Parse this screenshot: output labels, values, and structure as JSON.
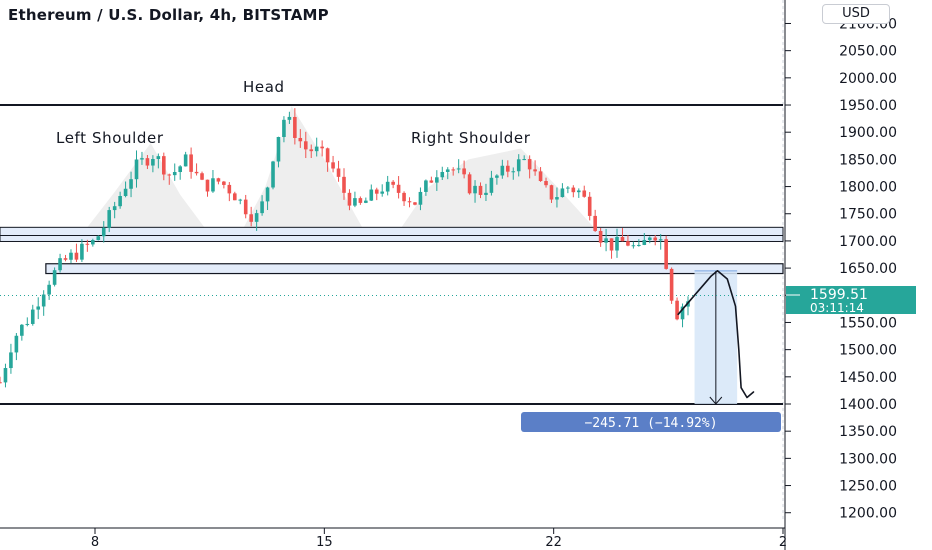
{
  "title": "Ethereum / U.S. Dollar, 4h, BITSTAMP",
  "currency": "USD",
  "colors": {
    "up": "#26a69a",
    "down": "#ef5350",
    "accent": "#26a69a",
    "measure_blue": "#5b7fc7",
    "zone_fill": "#e3ecfa",
    "pattern_fill": "#efefef"
  },
  "annotations": {
    "head": "Head",
    "left_shoulder": "Left Shoulder",
    "right_shoulder": "Right Shoulder"
  },
  "price_label": {
    "price": "1599.51",
    "countdown": "03:11:14"
  },
  "measure": {
    "label": "−245.71 (−14.92%)",
    "from": 1645,
    "to": 1400
  },
  "chart_data": {
    "type": "candlestick",
    "yticks": [
      1200,
      1250,
      1300,
      1350,
      1400,
      1450,
      1500,
      1550,
      1600,
      1650,
      1700,
      1750,
      1800,
      1850,
      1900,
      1950,
      2000,
      2050,
      2100
    ],
    "ytick_labels": [
      "1200.00",
      "1250.00",
      "1300.00",
      "1350.00",
      "1400.00",
      "1450.00",
      "1500.00",
      "1550.00",
      "1600.00",
      "1650.00",
      "1700.00",
      "1750.00",
      "1800.00",
      "1850.00",
      "1900.00",
      "1950.00",
      "2000.00",
      "2050.00",
      "2100.00"
    ],
    "xticks": [
      {
        "day": 8,
        "label": "8"
      },
      {
        "day": 15,
        "label": "15"
      },
      {
        "day": 22,
        "label": "22"
      },
      {
        "day": 29,
        "label": "2"
      }
    ],
    "ylim": [
      1170,
      2130
    ],
    "xlim": [
      5.1,
      29.0
    ],
    "levels": {
      "neckline_top": 1950,
      "target": 1400,
      "zone_upper": [
        1710,
        1725
      ],
      "zone_mid": [
        1640,
        1658
      ],
      "current": 1599.51
    },
    "path": [
      [
        5.1,
        1440
      ],
      [
        5.5,
        1520
      ],
      [
        6.0,
        1560
      ],
      [
        6.5,
        1620
      ],
      [
        7.0,
        1660
      ],
      [
        7.5,
        1680
      ],
      [
        8.0,
        1700
      ],
      [
        8.4,
        1740
      ],
      [
        8.9,
        1800
      ],
      [
        9.3,
        1840
      ],
      [
        9.8,
        1860
      ],
      [
        10.3,
        1820
      ],
      [
        10.8,
        1850
      ],
      [
        11.3,
        1800
      ],
      [
        11.8,
        1810
      ],
      [
        12.2,
        1790
      ],
      [
        12.6,
        1760
      ],
      [
        12.9,
        1740
      ],
      [
        13.2,
        1780
      ],
      [
        13.5,
        1880
      ],
      [
        13.8,
        1930
      ],
      [
        14.1,
        1900
      ],
      [
        14.4,
        1870
      ],
      [
        14.8,
        1865
      ],
      [
        15.2,
        1840
      ],
      [
        15.6,
        1790
      ],
      [
        16.0,
        1760
      ],
      [
        16.4,
        1780
      ],
      [
        16.8,
        1800
      ],
      [
        17.3,
        1790
      ],
      [
        17.8,
        1770
      ],
      [
        18.2,
        1810
      ],
      [
        18.6,
        1840
      ],
      [
        19.0,
        1830
      ],
      [
        19.4,
        1800
      ],
      [
        19.8,
        1790
      ],
      [
        20.3,
        1820
      ],
      [
        20.8,
        1840
      ],
      [
        21.2,
        1850
      ],
      [
        21.6,
        1800
      ],
      [
        22.0,
        1780
      ],
      [
        22.4,
        1800
      ],
      [
        22.8,
        1790
      ],
      [
        23.1,
        1760
      ],
      [
        23.4,
        1710
      ],
      [
        23.8,
        1690
      ],
      [
        24.2,
        1700
      ],
      [
        24.6,
        1680
      ],
      [
        25.0,
        1720
      ],
      [
        25.3,
        1700
      ],
      [
        25.5,
        1640
      ],
      [
        25.7,
        1560
      ],
      [
        25.9,
        1580
      ],
      [
        26.1,
        1590
      ],
      [
        26.2,
        1600
      ]
    ]
  }
}
